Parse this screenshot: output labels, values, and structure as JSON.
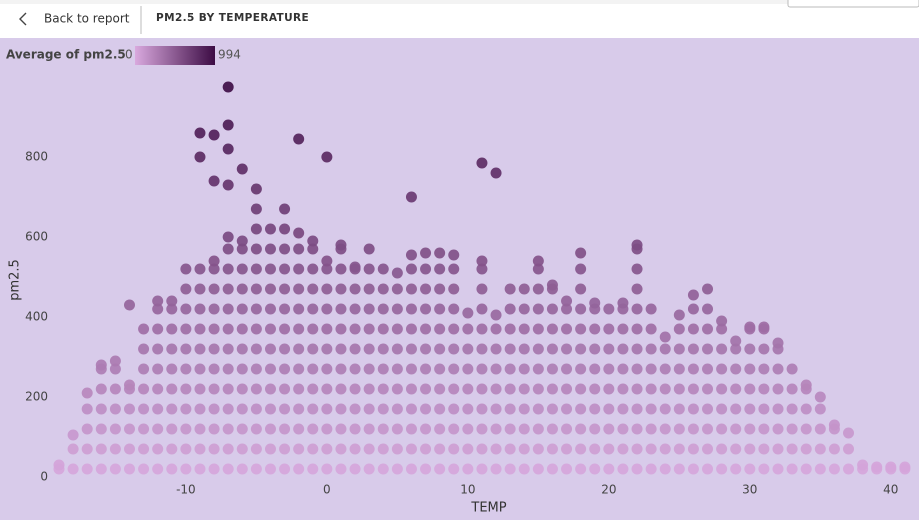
{
  "nav": {
    "back": "Back to report",
    "page_title": "PM2.5 BY TEMPERATURE"
  },
  "chart_data": {
    "type": "scatter",
    "x_label": "TEMP",
    "y_label": "pm2.5",
    "legend_title": "Average of pm2.5",
    "color_scale": {
      "min": 0,
      "max": 994,
      "colors": [
        "#d9a9de",
        "#3c0b44"
      ]
    },
    "xlim": [
      -19,
      42
    ],
    "xticks": [
      -10,
      0,
      10,
      20,
      30,
      40
    ],
    "ylim": [
      -10,
      1070
    ],
    "yticks": [
      0,
      200,
      400,
      600,
      800
    ],
    "columns": [
      {
        "x": -19,
        "values": [
          20,
          30
        ]
      },
      {
        "x": -18,
        "values": [
          20,
          70,
          105
        ]
      },
      {
        "x": -17,
        "values": [
          20,
          70,
          120,
          170,
          210
        ]
      },
      {
        "x": -16,
        "values": [
          20,
          70,
          120,
          170,
          220,
          270,
          280
        ]
      },
      {
        "x": -15,
        "values": [
          20,
          70,
          120,
          170,
          220,
          270,
          290
        ]
      },
      {
        "x": -14,
        "values": [
          20,
          70,
          120,
          170,
          220,
          230,
          430
        ]
      },
      {
        "x": -13,
        "values": [
          20,
          70,
          120,
          170,
          220,
          270,
          320,
          370
        ]
      },
      {
        "x": -12,
        "values": [
          20,
          70,
          120,
          170,
          220,
          270,
          320,
          370,
          420,
          440
        ]
      },
      {
        "x": -11,
        "values": [
          20,
          70,
          120,
          170,
          220,
          270,
          320,
          370,
          420,
          440
        ]
      },
      {
        "x": -10,
        "values": [
          20,
          70,
          120,
          170,
          220,
          270,
          320,
          370,
          420,
          470,
          520
        ]
      },
      {
        "x": -9,
        "values": [
          20,
          70,
          120,
          170,
          220,
          270,
          320,
          370,
          420,
          470,
          520,
          800,
          860
        ]
      },
      {
        "x": -8,
        "values": [
          20,
          70,
          120,
          170,
          220,
          270,
          320,
          370,
          420,
          470,
          520,
          540,
          740,
          855
        ]
      },
      {
        "x": -7,
        "values": [
          20,
          70,
          120,
          170,
          220,
          270,
          320,
          370,
          420,
          470,
          520,
          570,
          600,
          730,
          820,
          880,
          975
        ]
      },
      {
        "x": -6,
        "values": [
          20,
          70,
          120,
          170,
          220,
          270,
          320,
          370,
          420,
          470,
          520,
          570,
          590,
          770
        ]
      },
      {
        "x": -5,
        "values": [
          20,
          70,
          120,
          170,
          220,
          270,
          320,
          370,
          420,
          470,
          520,
          570,
          620,
          670,
          720
        ]
      },
      {
        "x": -4,
        "values": [
          20,
          70,
          120,
          170,
          220,
          270,
          320,
          370,
          420,
          470,
          520,
          570,
          620
        ]
      },
      {
        "x": -3,
        "values": [
          20,
          70,
          120,
          170,
          220,
          270,
          320,
          370,
          420,
          470,
          520,
          570,
          620,
          670
        ]
      },
      {
        "x": -2,
        "values": [
          20,
          70,
          120,
          170,
          220,
          270,
          320,
          370,
          420,
          470,
          520,
          570,
          610,
          845
        ]
      },
      {
        "x": -1,
        "values": [
          20,
          70,
          120,
          170,
          220,
          270,
          320,
          370,
          420,
          470,
          520,
          570,
          590
        ]
      },
      {
        "x": 0,
        "values": [
          20,
          70,
          120,
          170,
          220,
          270,
          320,
          370,
          420,
          470,
          520,
          540,
          800
        ]
      },
      {
        "x": 1,
        "values": [
          20,
          70,
          120,
          170,
          220,
          270,
          320,
          370,
          420,
          470,
          520,
          570,
          580
        ]
      },
      {
        "x": 2,
        "values": [
          20,
          70,
          120,
          170,
          220,
          270,
          320,
          370,
          420,
          470,
          520,
          525
        ]
      },
      {
        "x": 3,
        "values": [
          20,
          70,
          120,
          170,
          220,
          270,
          320,
          370,
          420,
          470,
          520,
          570
        ]
      },
      {
        "x": 4,
        "values": [
          20,
          70,
          120,
          170,
          220,
          270,
          320,
          370,
          420,
          470,
          520
        ]
      },
      {
        "x": 5,
        "values": [
          20,
          70,
          120,
          170,
          220,
          270,
          320,
          370,
          420,
          470,
          510
        ]
      },
      {
        "x": 6,
        "values": [
          20,
          70,
          120,
          170,
          220,
          270,
          320,
          370,
          420,
          470,
          520,
          555,
          700
        ]
      },
      {
        "x": 7,
        "values": [
          20,
          70,
          120,
          170,
          220,
          270,
          320,
          370,
          420,
          470,
          520,
          560
        ]
      },
      {
        "x": 8,
        "values": [
          20,
          70,
          120,
          170,
          220,
          270,
          320,
          370,
          420,
          470,
          520,
          560
        ]
      },
      {
        "x": 9,
        "values": [
          20,
          70,
          120,
          170,
          220,
          270,
          320,
          370,
          420,
          470,
          520,
          555
        ]
      },
      {
        "x": 10,
        "values": [
          20,
          70,
          120,
          170,
          220,
          270,
          320,
          370,
          410
        ]
      },
      {
        "x": 11,
        "values": [
          20,
          70,
          120,
          170,
          220,
          270,
          320,
          370,
          420,
          470,
          520,
          540,
          785
        ]
      },
      {
        "x": 12,
        "values": [
          20,
          70,
          120,
          170,
          220,
          270,
          320,
          370,
          405,
          760
        ]
      },
      {
        "x": 13,
        "values": [
          20,
          70,
          120,
          170,
          220,
          270,
          320,
          370,
          420,
          470
        ]
      },
      {
        "x": 14,
        "values": [
          20,
          70,
          120,
          170,
          220,
          270,
          320,
          370,
          420,
          470
        ]
      },
      {
        "x": 15,
        "values": [
          20,
          70,
          120,
          170,
          220,
          270,
          320,
          370,
          420,
          470,
          520,
          540
        ]
      },
      {
        "x": 16,
        "values": [
          20,
          70,
          120,
          170,
          220,
          270,
          320,
          370,
          420,
          470,
          480
        ]
      },
      {
        "x": 17,
        "values": [
          20,
          70,
          120,
          170,
          220,
          270,
          320,
          370,
          420,
          440
        ]
      },
      {
        "x": 18,
        "values": [
          20,
          70,
          120,
          170,
          220,
          270,
          320,
          370,
          420,
          470,
          520,
          560
        ]
      },
      {
        "x": 19,
        "values": [
          20,
          70,
          120,
          170,
          220,
          270,
          320,
          370,
          420,
          435
        ]
      },
      {
        "x": 20,
        "values": [
          20,
          70,
          120,
          170,
          220,
          270,
          320,
          370,
          420
        ]
      },
      {
        "x": 21,
        "values": [
          20,
          70,
          120,
          170,
          220,
          270,
          320,
          370,
          420,
          435
        ]
      },
      {
        "x": 22,
        "values": [
          20,
          70,
          120,
          170,
          220,
          270,
          320,
          370,
          420,
          470,
          520,
          570,
          580
        ]
      },
      {
        "x": 23,
        "values": [
          20,
          70,
          120,
          170,
          220,
          270,
          320,
          370,
          420
        ]
      },
      {
        "x": 24,
        "values": [
          20,
          70,
          120,
          170,
          220,
          270,
          320,
          350
        ]
      },
      {
        "x": 25,
        "values": [
          20,
          70,
          120,
          170,
          220,
          270,
          320,
          370,
          405
        ]
      },
      {
        "x": 26,
        "values": [
          20,
          70,
          120,
          170,
          220,
          270,
          320,
          370,
          420,
          455
        ]
      },
      {
        "x": 27,
        "values": [
          20,
          70,
          120,
          170,
          220,
          270,
          320,
          370,
          420,
          470
        ]
      },
      {
        "x": 28,
        "values": [
          20,
          70,
          120,
          170,
          220,
          270,
          320,
          370,
          390
        ]
      },
      {
        "x": 29,
        "values": [
          20,
          70,
          120,
          170,
          220,
          270,
          320,
          340
        ]
      },
      {
        "x": 30,
        "values": [
          20,
          70,
          120,
          170,
          220,
          270,
          320,
          370,
          375
        ]
      },
      {
        "x": 31,
        "values": [
          20,
          70,
          120,
          170,
          220,
          270,
          320,
          370,
          375
        ]
      },
      {
        "x": 32,
        "values": [
          20,
          70,
          120,
          170,
          220,
          270,
          320,
          335
        ]
      },
      {
        "x": 33,
        "values": [
          20,
          70,
          120,
          170,
          220,
          270
        ]
      },
      {
        "x": 34,
        "values": [
          20,
          70,
          120,
          170,
          220,
          230
        ]
      },
      {
        "x": 35,
        "values": [
          20,
          70,
          120,
          170,
          200
        ]
      },
      {
        "x": 36,
        "values": [
          20,
          70,
          120,
          130
        ]
      },
      {
        "x": 37,
        "values": [
          20,
          70,
          110
        ]
      },
      {
        "x": 38,
        "values": [
          20,
          30
        ]
      },
      {
        "x": 39,
        "values": [
          20,
          25
        ]
      },
      {
        "x": 40,
        "values": [
          20,
          25
        ]
      },
      {
        "x": 41,
        "values": [
          20,
          25
        ]
      }
    ]
  }
}
